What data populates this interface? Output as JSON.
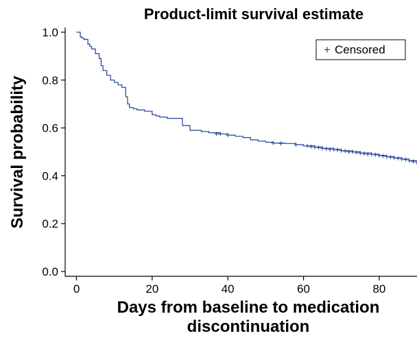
{
  "chart_data": {
    "type": "line",
    "title": "Product-limit survival estimate",
    "xlabel": [
      "Days from baseline to medication",
      "discontinuation"
    ],
    "ylabel": "Survival probability",
    "xlim": [
      -3,
      90
    ],
    "ylim": [
      -0.02,
      1.02
    ],
    "xticks": [
      0,
      20,
      40,
      60,
      80
    ],
    "yticks": [
      "0.0",
      "0.2",
      "0.4",
      "0.6",
      "0.8",
      "1.0"
    ],
    "grid": false,
    "legend_position": "top-right",
    "legend": [
      {
        "marker": "+",
        "label": "Censored"
      }
    ],
    "series": [
      {
        "step": true,
        "color": "#1f3f99",
        "x": [
          0,
          1,
          1.5,
          2,
          3,
          3.5,
          4,
          5,
          6,
          6.5,
          7,
          8,
          9,
          10,
          11,
          12,
          13,
          13.5,
          14,
          15,
          16,
          18,
          20,
          21,
          22,
          24,
          25,
          28,
          30,
          33,
          35,
          38,
          40,
          42,
          44,
          46,
          48,
          50,
          52,
          55,
          58,
          60,
          63,
          65,
          68,
          70,
          73,
          75,
          78,
          80,
          82,
          84,
          86,
          88,
          90
        ],
        "y": [
          1.0,
          0.98,
          0.975,
          0.97,
          0.95,
          0.94,
          0.93,
          0.91,
          0.89,
          0.86,
          0.84,
          0.82,
          0.8,
          0.79,
          0.78,
          0.77,
          0.73,
          0.7,
          0.685,
          0.68,
          0.675,
          0.67,
          0.655,
          0.65,
          0.645,
          0.64,
          0.64,
          0.61,
          0.59,
          0.585,
          0.58,
          0.575,
          0.57,
          0.565,
          0.56,
          0.55,
          0.545,
          0.54,
          0.537,
          0.535,
          0.53,
          0.525,
          0.52,
          0.515,
          0.51,
          0.505,
          0.5,
          0.495,
          0.49,
          0.485,
          0.48,
          0.475,
          0.47,
          0.463,
          0.455
        ]
      }
    ],
    "censored": {
      "x": [
        37,
        38,
        40,
        52,
        54,
        58,
        61,
        62,
        63,
        64,
        65,
        66,
        67,
        68,
        69,
        70,
        71,
        72,
        73,
        74,
        75,
        76,
        77,
        78,
        79,
        80,
        81,
        82,
        83,
        84,
        85,
        86,
        87,
        88,
        89,
        90
      ],
      "y": [
        0.575,
        0.575,
        0.57,
        0.537,
        0.535,
        0.53,
        0.525,
        0.522,
        0.52,
        0.518,
        0.515,
        0.513,
        0.51,
        0.51,
        0.508,
        0.505,
        0.503,
        0.5,
        0.5,
        0.498,
        0.495,
        0.493,
        0.49,
        0.49,
        0.488,
        0.485,
        0.483,
        0.48,
        0.478,
        0.475,
        0.473,
        0.47,
        0.468,
        0.463,
        0.46,
        0.455
      ]
    }
  }
}
